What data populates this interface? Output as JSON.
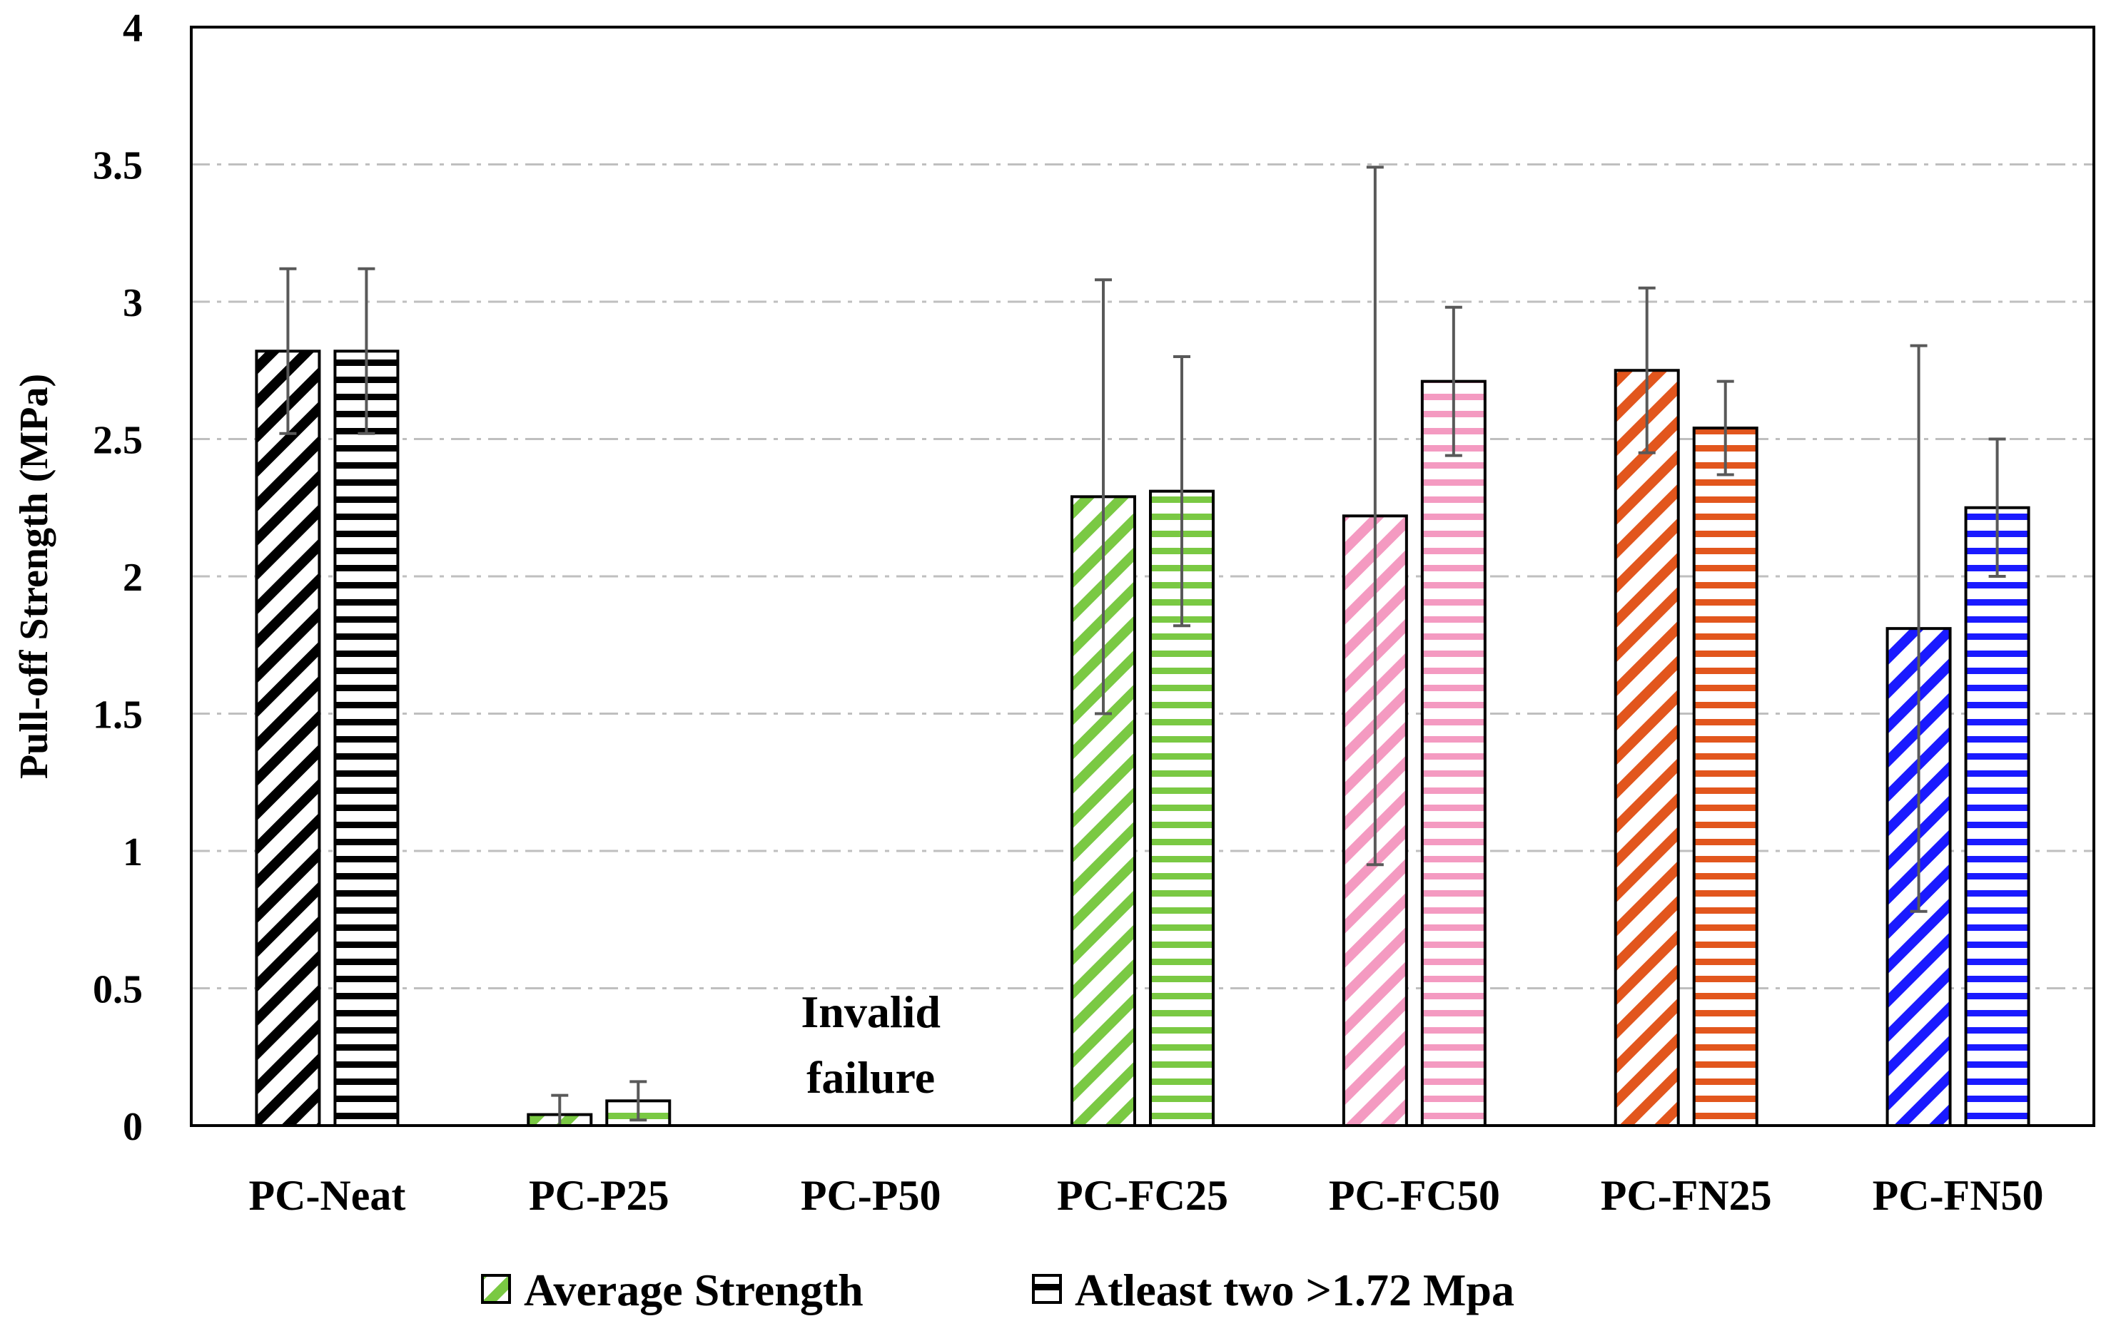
{
  "chart_data": {
    "type": "bar",
    "title": "",
    "xlabel": "",
    "ylabel": "Pull-off Strength (MPa)",
    "ylim": [
      0,
      4
    ],
    "yticks": [
      {
        "value": 0,
        "label": "0"
      },
      {
        "value": 0.5,
        "label": "0.5"
      },
      {
        "value": 1,
        "label": "1"
      },
      {
        "value": 1.5,
        "label": "1.5"
      },
      {
        "value": 2,
        "label": "2"
      },
      {
        "value": 2.5,
        "label": "2.5"
      },
      {
        "value": 3,
        "label": "3"
      },
      {
        "value": 3.5,
        "label": "3.5"
      },
      {
        "value": 4,
        "label": "4"
      }
    ],
    "grid": true,
    "legend_position": "bottom",
    "categories": [
      "PC-Neat",
      "PC-P25",
      "PC-P50",
      "PC-FC25",
      "PC-FC50",
      "PC-FN25",
      "PC-FN50"
    ],
    "category_colors": [
      "#000000",
      "#7ac943",
      "#000000",
      "#7ac943",
      "#f49ac1",
      "#e2561d",
      "#1a1aff"
    ],
    "series": [
      {
        "name": "Average Strength",
        "pattern": "diagonal",
        "legend_color": "#7ac943",
        "values": [
          2.82,
          0.04,
          null,
          2.29,
          2.22,
          2.75,
          1.81
        ],
        "errors": [
          0.3,
          0.07,
          null,
          0.79,
          1.27,
          0.3,
          1.03
        ]
      },
      {
        "name": "Atleast two >1.72 Mpa",
        "pattern": "horizontal",
        "legend_color": "#000000",
        "values": [
          2.82,
          0.09,
          null,
          2.31,
          2.71,
          2.54,
          2.25
        ],
        "errors": [
          0.3,
          0.07,
          null,
          0.49,
          0.27,
          0.17,
          0.25
        ]
      }
    ],
    "annotations": [
      {
        "category": "PC-P50",
        "lines": [
          "Invalid",
          "failure"
        ]
      }
    ]
  }
}
